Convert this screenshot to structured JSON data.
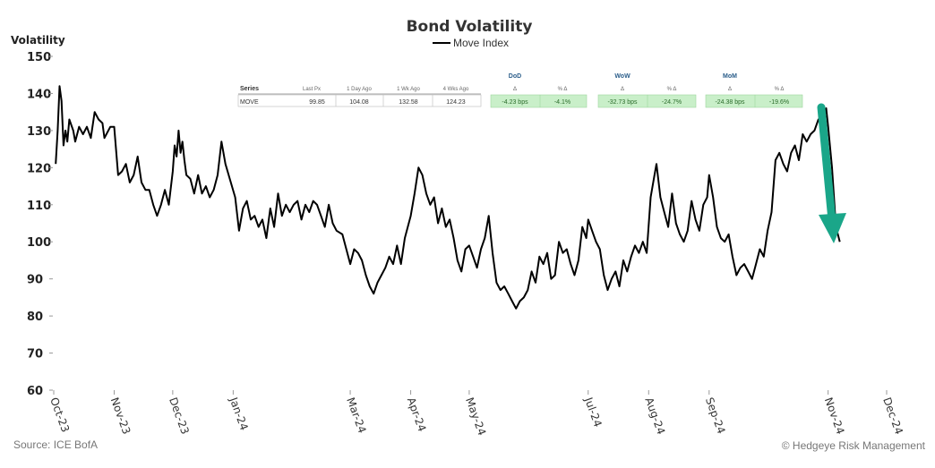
{
  "chart_data": {
    "type": "line",
    "title": "Bond Volatility",
    "ylabel": "Volatility",
    "ylim": [
      60,
      150
    ],
    "yticks": [
      60,
      70,
      80,
      90,
      100,
      110,
      120,
      130,
      140,
      150
    ],
    "xtick_labels": [
      "Oct-23",
      "Nov-23",
      "Dec-23",
      "Jan-24",
      "Mar-24",
      "Apr-24",
      "May-24",
      "Jul-24",
      "Aug-24",
      "Sep-24",
      "Nov-24",
      "Dec-24"
    ],
    "xtick_dates": [
      "2023-10-01",
      "2023-11-01",
      "2023-12-01",
      "2024-01-01",
      "2024-03-01",
      "2024-04-01",
      "2024-05-01",
      "2024-07-01",
      "2024-08-01",
      "2024-09-01",
      "2024-11-01",
      "2024-12-01"
    ],
    "grid": false,
    "legend_position": "top-center",
    "series": [
      {
        "name": "Move Index",
        "color": "#000000",
        "points": [
          [
            "2023-10-02",
            121
          ],
          [
            "2023-10-03",
            130
          ],
          [
            "2023-10-04",
            142
          ],
          [
            "2023-10-05",
            138
          ],
          [
            "2023-10-06",
            126
          ],
          [
            "2023-10-07",
            130
          ],
          [
            "2023-10-08",
            127
          ],
          [
            "2023-10-09",
            133
          ],
          [
            "2023-10-11",
            130
          ],
          [
            "2023-10-12",
            127
          ],
          [
            "2023-10-14",
            131
          ],
          [
            "2023-10-16",
            129
          ],
          [
            "2023-10-18",
            131
          ],
          [
            "2023-10-20",
            128
          ],
          [
            "2023-10-22",
            135
          ],
          [
            "2023-10-24",
            133
          ],
          [
            "2023-10-26",
            132
          ],
          [
            "2023-10-27",
            128
          ],
          [
            "2023-10-28",
            129
          ],
          [
            "2023-10-30",
            131
          ],
          [
            "2023-11-01",
            131
          ],
          [
            "2023-11-03",
            118
          ],
          [
            "2023-11-05",
            119
          ],
          [
            "2023-11-07",
            121
          ],
          [
            "2023-11-09",
            116
          ],
          [
            "2023-11-11",
            118
          ],
          [
            "2023-11-13",
            123
          ],
          [
            "2023-11-15",
            116
          ],
          [
            "2023-11-17",
            114
          ],
          [
            "2023-11-19",
            114
          ],
          [
            "2023-11-21",
            110
          ],
          [
            "2023-11-23",
            107
          ],
          [
            "2023-11-25",
            110
          ],
          [
            "2023-11-27",
            114
          ],
          [
            "2023-11-29",
            110
          ],
          [
            "2023-12-01",
            119
          ],
          [
            "2023-12-02",
            126
          ],
          [
            "2023-12-03",
            123
          ],
          [
            "2023-12-04",
            130
          ],
          [
            "2023-12-05",
            124
          ],
          [
            "2023-12-06",
            127
          ],
          [
            "2023-12-07",
            122
          ],
          [
            "2023-12-08",
            118
          ],
          [
            "2023-12-10",
            117
          ],
          [
            "2023-12-12",
            113
          ],
          [
            "2023-12-14",
            118
          ],
          [
            "2023-12-16",
            113
          ],
          [
            "2023-12-18",
            115
          ],
          [
            "2023-12-20",
            112
          ],
          [
            "2023-12-22",
            114
          ],
          [
            "2023-12-24",
            118
          ],
          [
            "2023-12-26",
            127
          ],
          [
            "2023-12-28",
            121
          ],
          [
            "2024-01-02",
            112
          ],
          [
            "2024-01-04",
            103
          ],
          [
            "2024-01-06",
            109
          ],
          [
            "2024-01-08",
            111
          ],
          [
            "2024-01-10",
            106
          ],
          [
            "2024-01-12",
            107
          ],
          [
            "2024-01-14",
            104
          ],
          [
            "2024-01-16",
            106
          ],
          [
            "2024-01-18",
            101
          ],
          [
            "2024-01-20",
            109
          ],
          [
            "2024-01-22",
            104
          ],
          [
            "2024-01-24",
            113
          ],
          [
            "2024-01-26",
            107
          ],
          [
            "2024-01-28",
            110
          ],
          [
            "2024-01-30",
            108
          ],
          [
            "2024-02-01",
            110
          ],
          [
            "2024-02-03",
            111
          ],
          [
            "2024-02-05",
            106
          ],
          [
            "2024-02-07",
            110
          ],
          [
            "2024-02-09",
            108
          ],
          [
            "2024-02-11",
            111
          ],
          [
            "2024-02-13",
            110
          ],
          [
            "2024-02-15",
            107
          ],
          [
            "2024-02-17",
            104
          ],
          [
            "2024-02-19",
            110
          ],
          [
            "2024-02-21",
            105
          ],
          [
            "2024-02-23",
            103
          ],
          [
            "2024-02-26",
            102
          ],
          [
            "2024-02-28",
            98
          ],
          [
            "2024-03-01",
            94
          ],
          [
            "2024-03-03",
            98
          ],
          [
            "2024-03-05",
            97
          ],
          [
            "2024-03-07",
            95
          ],
          [
            "2024-03-09",
            91
          ],
          [
            "2024-03-11",
            88
          ],
          [
            "2024-03-13",
            86
          ],
          [
            "2024-03-15",
            89
          ],
          [
            "2024-03-17",
            91
          ],
          [
            "2024-03-19",
            93
          ],
          [
            "2024-03-21",
            96
          ],
          [
            "2024-03-23",
            94
          ],
          [
            "2024-03-25",
            99
          ],
          [
            "2024-03-27",
            94
          ],
          [
            "2024-03-29",
            101
          ],
          [
            "2024-04-01",
            107
          ],
          [
            "2024-04-03",
            113
          ],
          [
            "2024-04-05",
            120
          ],
          [
            "2024-04-07",
            118
          ],
          [
            "2024-04-09",
            113
          ],
          [
            "2024-04-11",
            110
          ],
          [
            "2024-04-13",
            112
          ],
          [
            "2024-04-15",
            105
          ],
          [
            "2024-04-17",
            109
          ],
          [
            "2024-04-19",
            104
          ],
          [
            "2024-04-21",
            106
          ],
          [
            "2024-04-23",
            101
          ],
          [
            "2024-04-25",
            95
          ],
          [
            "2024-04-27",
            92
          ],
          [
            "2024-04-29",
            98
          ],
          [
            "2024-05-01",
            99
          ],
          [
            "2024-05-03",
            96
          ],
          [
            "2024-05-05",
            93
          ],
          [
            "2024-05-07",
            98
          ],
          [
            "2024-05-09",
            101
          ],
          [
            "2024-05-11",
            107
          ],
          [
            "2024-05-13",
            97
          ],
          [
            "2024-05-15",
            89
          ],
          [
            "2024-05-17",
            87
          ],
          [
            "2024-05-19",
            88
          ],
          [
            "2024-05-21",
            86
          ],
          [
            "2024-05-23",
            84
          ],
          [
            "2024-05-25",
            82
          ],
          [
            "2024-05-27",
            84
          ],
          [
            "2024-05-29",
            85
          ],
          [
            "2024-05-31",
            87
          ],
          [
            "2024-06-02",
            92
          ],
          [
            "2024-06-04",
            89
          ],
          [
            "2024-06-06",
            96
          ],
          [
            "2024-06-08",
            94
          ],
          [
            "2024-06-10",
            97
          ],
          [
            "2024-06-12",
            90
          ],
          [
            "2024-06-14",
            91
          ],
          [
            "2024-06-16",
            100
          ],
          [
            "2024-06-18",
            97
          ],
          [
            "2024-06-20",
            98
          ],
          [
            "2024-06-22",
            94
          ],
          [
            "2024-06-24",
            91
          ],
          [
            "2024-06-26",
            95
          ],
          [
            "2024-06-28",
            104
          ],
          [
            "2024-06-30",
            101
          ],
          [
            "2024-07-01",
            106
          ],
          [
            "2024-07-03",
            103
          ],
          [
            "2024-07-05",
            100
          ],
          [
            "2024-07-07",
            98
          ],
          [
            "2024-07-09",
            91
          ],
          [
            "2024-07-11",
            87
          ],
          [
            "2024-07-13",
            90
          ],
          [
            "2024-07-15",
            92
          ],
          [
            "2024-07-17",
            88
          ],
          [
            "2024-07-19",
            95
          ],
          [
            "2024-07-21",
            92
          ],
          [
            "2024-07-23",
            96
          ],
          [
            "2024-07-25",
            99
          ],
          [
            "2024-07-27",
            97
          ],
          [
            "2024-07-29",
            100
          ],
          [
            "2024-07-31",
            97
          ],
          [
            "2024-08-02",
            112
          ],
          [
            "2024-08-04",
            118
          ],
          [
            "2024-08-05",
            121
          ],
          [
            "2024-08-07",
            112
          ],
          [
            "2024-08-09",
            108
          ],
          [
            "2024-08-11",
            104
          ],
          [
            "2024-08-13",
            113
          ],
          [
            "2024-08-15",
            105
          ],
          [
            "2024-08-17",
            102
          ],
          [
            "2024-08-19",
            100
          ],
          [
            "2024-08-21",
            103
          ],
          [
            "2024-08-23",
            111
          ],
          [
            "2024-08-25",
            106
          ],
          [
            "2024-08-27",
            103
          ],
          [
            "2024-08-29",
            110
          ],
          [
            "2024-08-31",
            112
          ],
          [
            "2024-09-01",
            118
          ],
          [
            "2024-09-03",
            112
          ],
          [
            "2024-09-05",
            104
          ],
          [
            "2024-09-07",
            101
          ],
          [
            "2024-09-09",
            100
          ],
          [
            "2024-09-11",
            102
          ],
          [
            "2024-09-13",
            96
          ],
          [
            "2024-09-15",
            91
          ],
          [
            "2024-09-17",
            93
          ],
          [
            "2024-09-19",
            94
          ],
          [
            "2024-09-21",
            92
          ],
          [
            "2024-09-23",
            90
          ],
          [
            "2024-09-25",
            94
          ],
          [
            "2024-09-27",
            98
          ],
          [
            "2024-09-29",
            96
          ],
          [
            "2024-10-01",
            103
          ],
          [
            "2024-10-03",
            108
          ],
          [
            "2024-10-05",
            122
          ],
          [
            "2024-10-07",
            124
          ],
          [
            "2024-10-09",
            121
          ],
          [
            "2024-10-11",
            119
          ],
          [
            "2024-10-13",
            124
          ],
          [
            "2024-10-15",
            126
          ],
          [
            "2024-10-17",
            122
          ],
          [
            "2024-10-19",
            129
          ],
          [
            "2024-10-21",
            127
          ],
          [
            "2024-10-23",
            129
          ],
          [
            "2024-10-25",
            130
          ],
          [
            "2024-10-27",
            133
          ],
          [
            "2024-10-29",
            132
          ],
          [
            "2024-10-31",
            136
          ],
          [
            "2024-11-01",
            131
          ],
          [
            "2024-11-03",
            120
          ],
          [
            "2024-11-05",
            104
          ],
          [
            "2024-11-07",
            100
          ]
        ]
      }
    ],
    "annotation": {
      "type": "arrow",
      "direction": "down",
      "color": "#1aa689"
    },
    "summary_table": {
      "series_header": "Series",
      "col_headers": [
        "Last Px",
        "1 Day Ago",
        "1 Wk Ago",
        "4 Wks Ago"
      ],
      "row_label": "MOVE",
      "values": [
        "99.85",
        "104.08",
        "132.58",
        "124.23"
      ],
      "groups": [
        {
          "label": "DoD",
          "sub": [
            "Δ",
            "% Δ"
          ],
          "cells": [
            "-4.23 bps",
            "-4.1%"
          ]
        },
        {
          "label": "WoW",
          "sub": [
            "Δ",
            "% Δ"
          ],
          "cells": [
            "-32.73 bps",
            "-24.7%"
          ]
        },
        {
          "label": "MoM",
          "sub": [
            "Δ",
            "% Δ"
          ],
          "cells": [
            "-24.38 bps",
            "-19.6%"
          ]
        }
      ],
      "delta_fill": "#c9efc9"
    }
  },
  "footer": {
    "source": "Source: ICE BofA",
    "copyright": "© Hedgeye Risk Management"
  }
}
